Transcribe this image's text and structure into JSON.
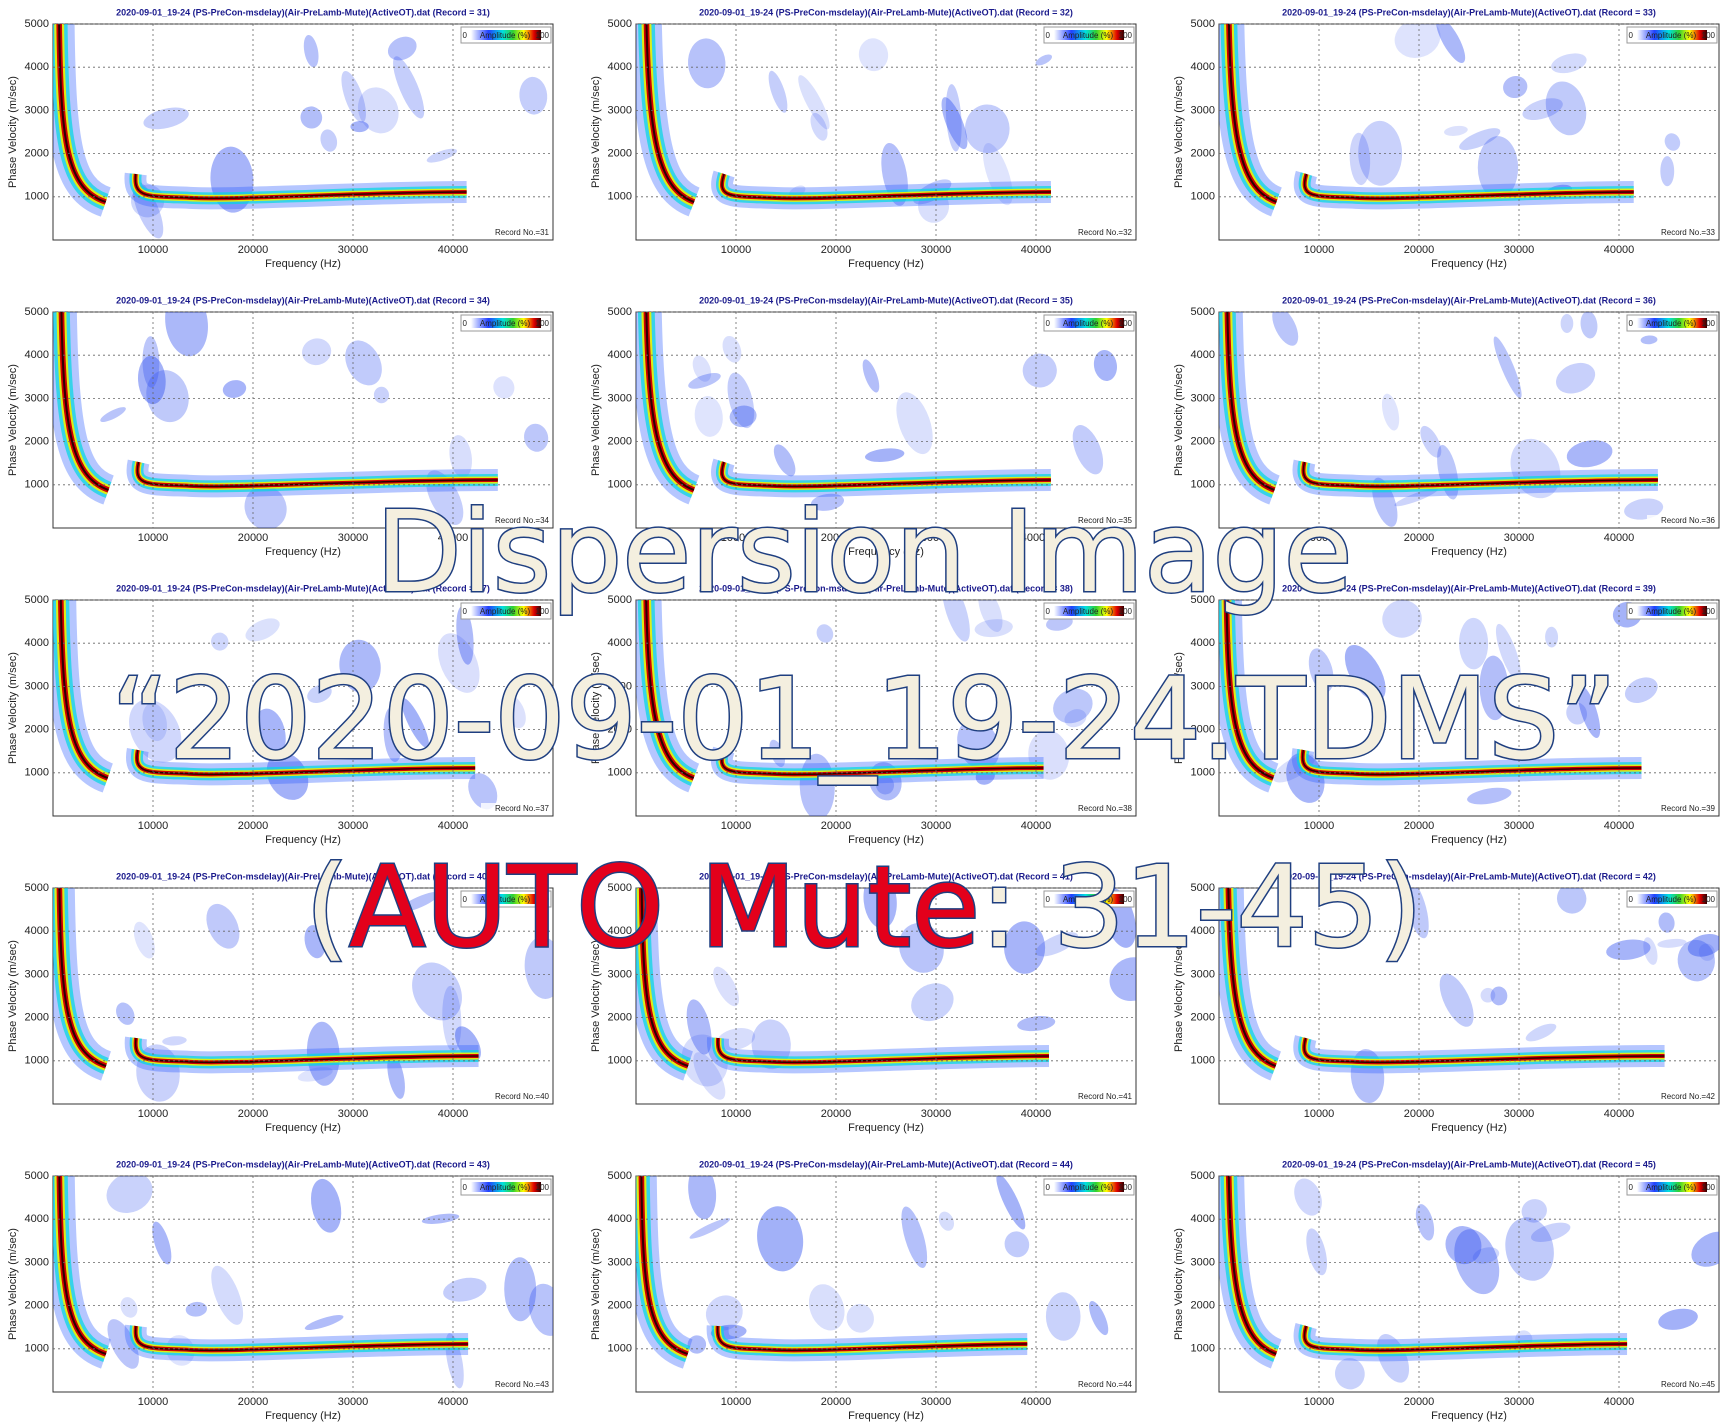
{
  "axes": {
    "xlabel": "Frequency (Hz)",
    "ylabel": "Phase Velocity (m/sec)",
    "xlim": [
      0,
      50000
    ],
    "ylim": [
      0,
      5000
    ],
    "xticks": [
      10000,
      20000,
      30000,
      40000
    ],
    "yticks": [
      1000,
      2000,
      3000,
      4000,
      5000
    ],
    "legend": {
      "min": 0,
      "title": "Amplitude (%)",
      "max": 100
    }
  },
  "panels": [
    {
      "title": "2020-09-01_19-24 (PS-PreCon-msdelay)(Air-PreLamb-Mute)(ActiveOT).dat (Record = 31)",
      "record": "Record No.=31"
    },
    {
      "title": "2020-09-01_19-24 (PS-PreCon-msdelay)(Air-PreLamb-Mute)(ActiveOT).dat (Record = 32)",
      "record": "Record No.=32"
    },
    {
      "title": "2020-09-01_19-24 (PS-PreCon-msdelay)(Air-PreLamb-Mute)(ActiveOT).dat (Record = 33)",
      "record": "Record No.=33"
    },
    {
      "title": "2020-09-01_19-24 (PS-PreCon-msdelay)(Air-PreLamb-Mute)(ActiveOT).dat (Record = 34)",
      "record": "Record No.=34"
    },
    {
      "title": "2020-09-01_19-24 (PS-PreCon-msdelay)(Air-PreLamb-Mute)(ActiveOT).dat (Record = 35)",
      "record": "Record No.=35"
    },
    {
      "title": "2020-09-01_19-24 (PS-PreCon-msdelay)(Air-PreLamb-Mute)(ActiveOT).dat (Record = 36)",
      "record": "Record No.=36"
    },
    {
      "title": "2020-09-01_19-24 (PS-PreCon-msdelay)(Air-PreLamb-Mute)(ActiveOT).dat (Record = 37)",
      "record": "Record No.=37"
    },
    {
      "title": "2020-09-01_19-24 (PS-PreCon-msdelay)(Air-PreLamb-Mute)(ActiveOT).dat (Record = 38)",
      "record": "Record No.=38"
    },
    {
      "title": "2020-09-01_19-24 (PS-PreCon-msdelay)(Air-PreLamb-Mute)(ActiveOT).dat (Record = 39)",
      "record": "Record No.=39"
    },
    {
      "title": "2020-09-01_19-24 (PS-PreCon-msdelay)(Air-PreLamb-Mute)(ActiveOT).dat (Record = 40)",
      "record": "Record No.=40"
    },
    {
      "title": "2020-09-01_19-24 (PS-PreCon-msdelay)(Air-PreLamb-Mute)(ActiveOT).dat (Record = 41)",
      "record": "Record No.=41"
    },
    {
      "title": "2020-09-01_19-24 (PS-PreCon-msdelay)(Air-PreLamb-Mute)(ActiveOT).dat (Record = 42)",
      "record": "Record No.=42"
    },
    {
      "title": "2020-09-01_19-24 (PS-PreCon-msdelay)(Air-PreLamb-Mute)(ActiveOT).dat (Record = 43)",
      "record": "Record No.=43"
    },
    {
      "title": "2020-09-01_19-24 (PS-PreCon-msdelay)(Air-PreLamb-Mute)(ActiveOT).dat (Record = 44)",
      "record": "Record No.=44"
    },
    {
      "title": "2020-09-01_19-24 (PS-PreCon-msdelay)(Air-PreLamb-Mute)(ActiveOT).dat (Record = 45)",
      "record": "Record No.=45"
    }
  ],
  "overlay": {
    "line1": "Dispersion Image",
    "line2": "“2020-09-01_19-24.TDMS”",
    "line3": [
      "(",
      "AUTO Mute",
      ": 31-45)"
    ]
  }
}
